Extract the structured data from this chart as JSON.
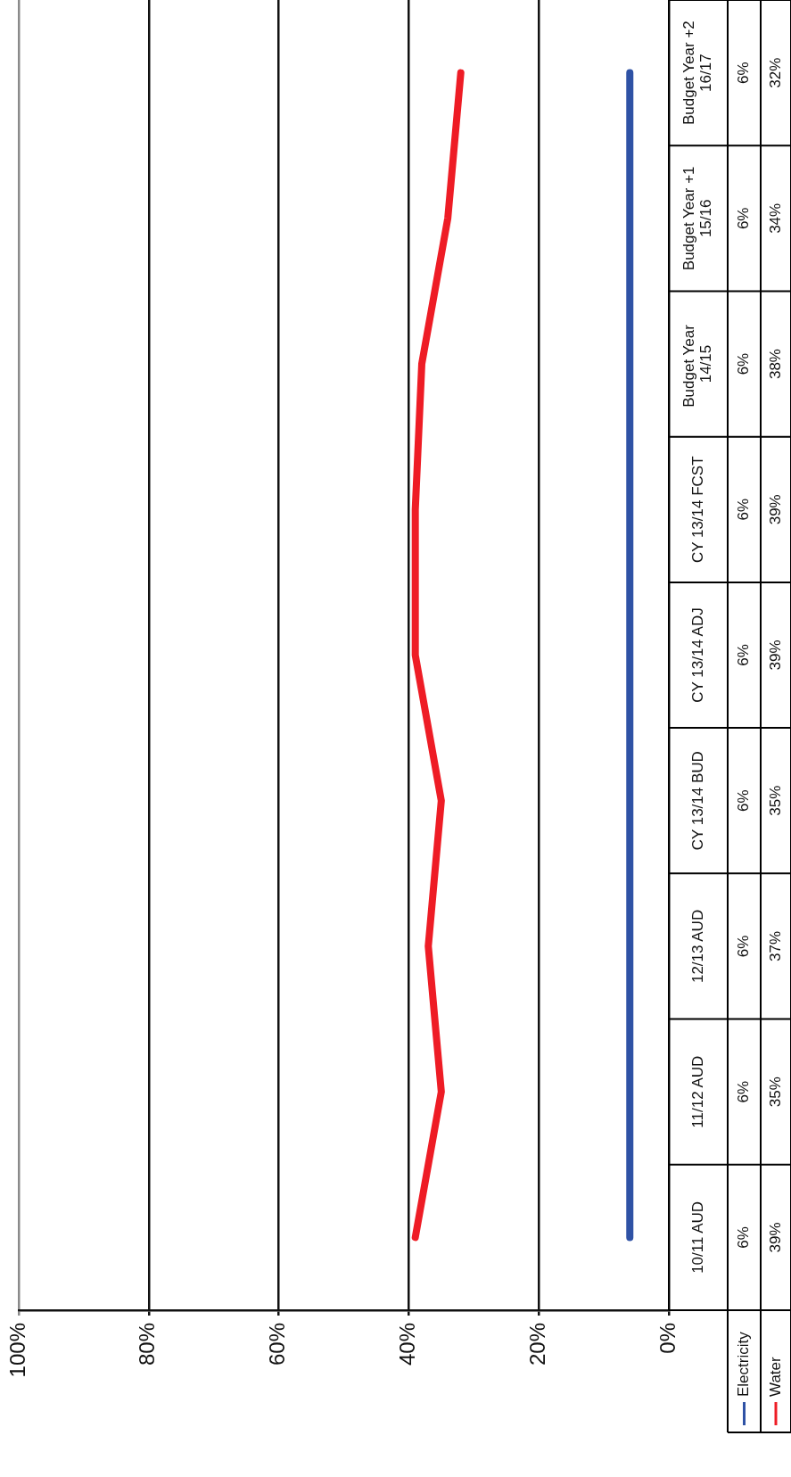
{
  "chart_data": {
    "type": "line",
    "orientation": "horizontal",
    "categories": [
      "Budget Year +2 16/17",
      "Budget Year +1 15/16",
      "Budget Year  14/15",
      "CY 13/14 FCST",
      "CY 13/14 ADJ",
      "CY 13/14 BUD",
      "12/13 AUD",
      "11/12 AUD",
      "10/11 AUD"
    ],
    "series": [
      {
        "name": "Electricity",
        "color": "#2f52a5",
        "values": [
          6,
          6,
          6,
          6,
          6,
          6,
          6,
          6,
          6
        ],
        "value_labels": [
          "6%",
          "6%",
          "6%",
          "6%",
          "6%",
          "6%",
          "6%",
          "6%",
          "6%"
        ]
      },
      {
        "name": "Water",
        "color": "#ee1c25",
        "values": [
          32,
          34,
          38,
          39,
          39,
          35,
          37,
          35,
          39
        ],
        "value_labels": [
          "32%",
          "34%",
          "38%",
          "39%",
          "39%",
          "35%",
          "37%",
          "35%",
          "39%"
        ]
      }
    ],
    "xlim": [
      100,
      0
    ],
    "xticks": [
      {
        "value": 0,
        "label": "0%"
      },
      {
        "value": 20,
        "label": "20%"
      },
      {
        "value": 40,
        "label": "40%"
      },
      {
        "value": 60,
        "label": "60%"
      },
      {
        "value": 80,
        "label": "80%"
      },
      {
        "value": 100,
        "label": "100%"
      }
    ],
    "grid": "x",
    "legend": "bottom right",
    "marker": "none",
    "line_style": "solid"
  }
}
